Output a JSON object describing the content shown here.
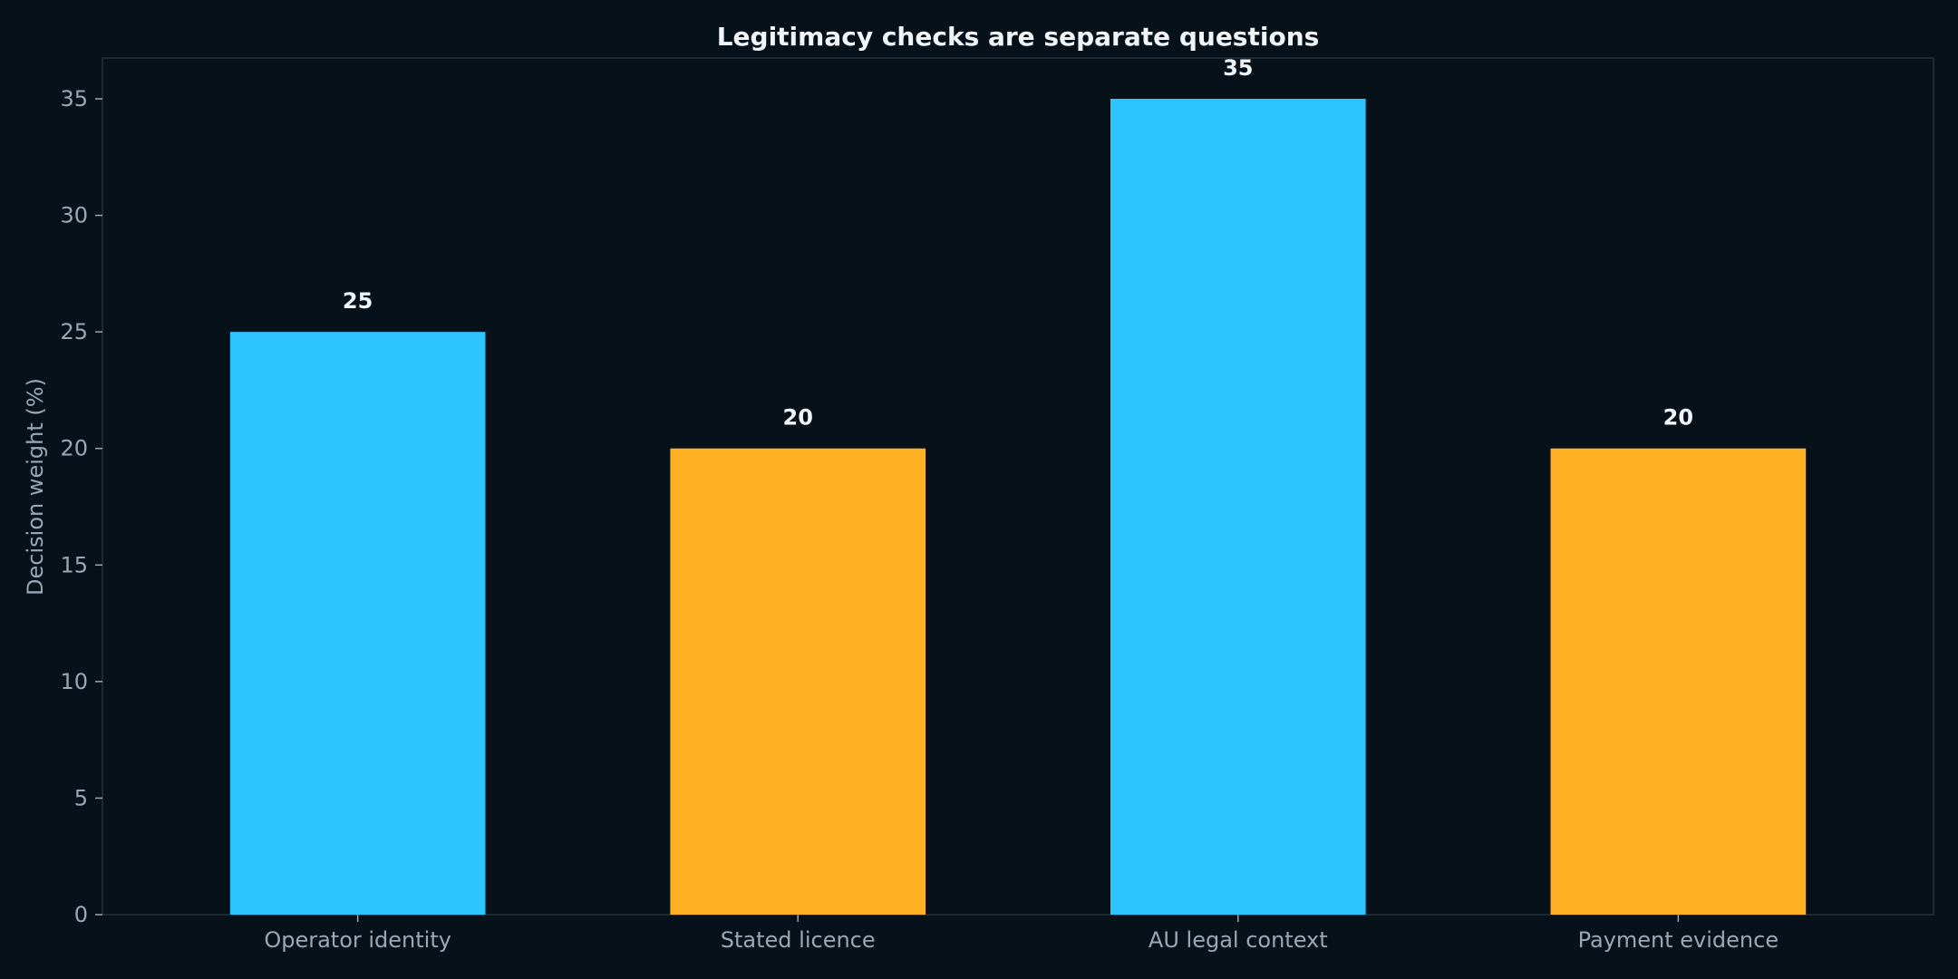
{
  "chart_data": {
    "type": "bar",
    "title": "Legitimacy checks are separate questions",
    "xlabel": "",
    "ylabel": "Decision weight (%)",
    "categories": [
      "Operator identity",
      "Stated licence",
      "AU legal context",
      "Payment evidence"
    ],
    "values": [
      25,
      20,
      35,
      20
    ],
    "value_labels": [
      "25",
      "20",
      "35",
      "20"
    ],
    "bar_colors": [
      "#2ec4ff",
      "#ffb023",
      "#2ec4ff",
      "#ffb023"
    ],
    "ylim": [
      0,
      36.75
    ],
    "yticks": [
      0,
      5,
      10,
      15,
      20,
      25,
      30,
      35
    ],
    "ytick_labels": [
      "0",
      "5",
      "10",
      "15",
      "20",
      "25",
      "30",
      "35"
    ],
    "grid": false,
    "legend": "none"
  },
  "colors": {
    "background": "#07111a",
    "axes_edge": "#243240",
    "tick_text": "#9aa8b6",
    "title_text": "#f2f5f8"
  }
}
